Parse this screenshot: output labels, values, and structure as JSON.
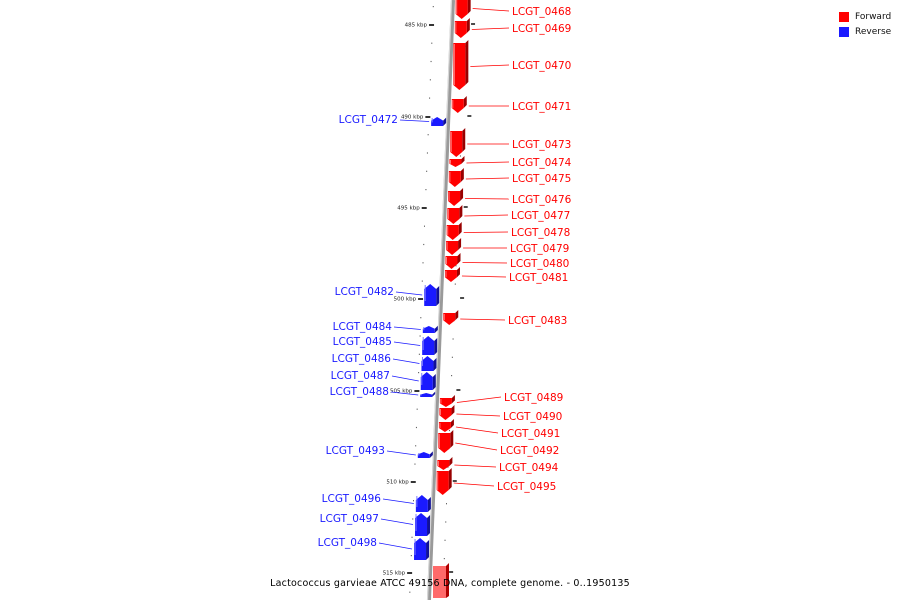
{
  "legend": {
    "forward": {
      "label": "Forward",
      "color": "#ff0000"
    },
    "reverse": {
      "label": "Reverse",
      "color": "#1a1aff"
    }
  },
  "caption": "Lactococcus garvieae ATCC 49156 DNA, complete genome. - 0..1950135",
  "ruler_labels": [
    "485 kbp",
    "490 kbp",
    "495 kbp",
    "500 kbp",
    "505 kbp",
    "510 kbp",
    "515 kbp"
  ],
  "genes": {
    "forward": [
      "LCGT_0468",
      "LCGT_0469",
      "LCGT_0470",
      "LCGT_0471",
      "LCGT_0473",
      "LCGT_0474",
      "LCGT_0475",
      "LCGT_0476",
      "LCGT_0477",
      "LCGT_0478",
      "LCGT_0479",
      "LCGT_0480",
      "LCGT_0481",
      "LCGT_0483",
      "LCGT_0489",
      "LCGT_0490",
      "LCGT_0491",
      "LCGT_0492",
      "LCGT_0494",
      "LCGT_0495"
    ],
    "reverse": [
      "LCGT_0472",
      "LCGT_0482",
      "LCGT_0484",
      "LCGT_0485",
      "LCGT_0486",
      "LCGT_0487",
      "LCGT_0488",
      "LCGT_0493",
      "LCGT_0496",
      "LCGT_0497",
      "LCGT_0498"
    ]
  }
}
